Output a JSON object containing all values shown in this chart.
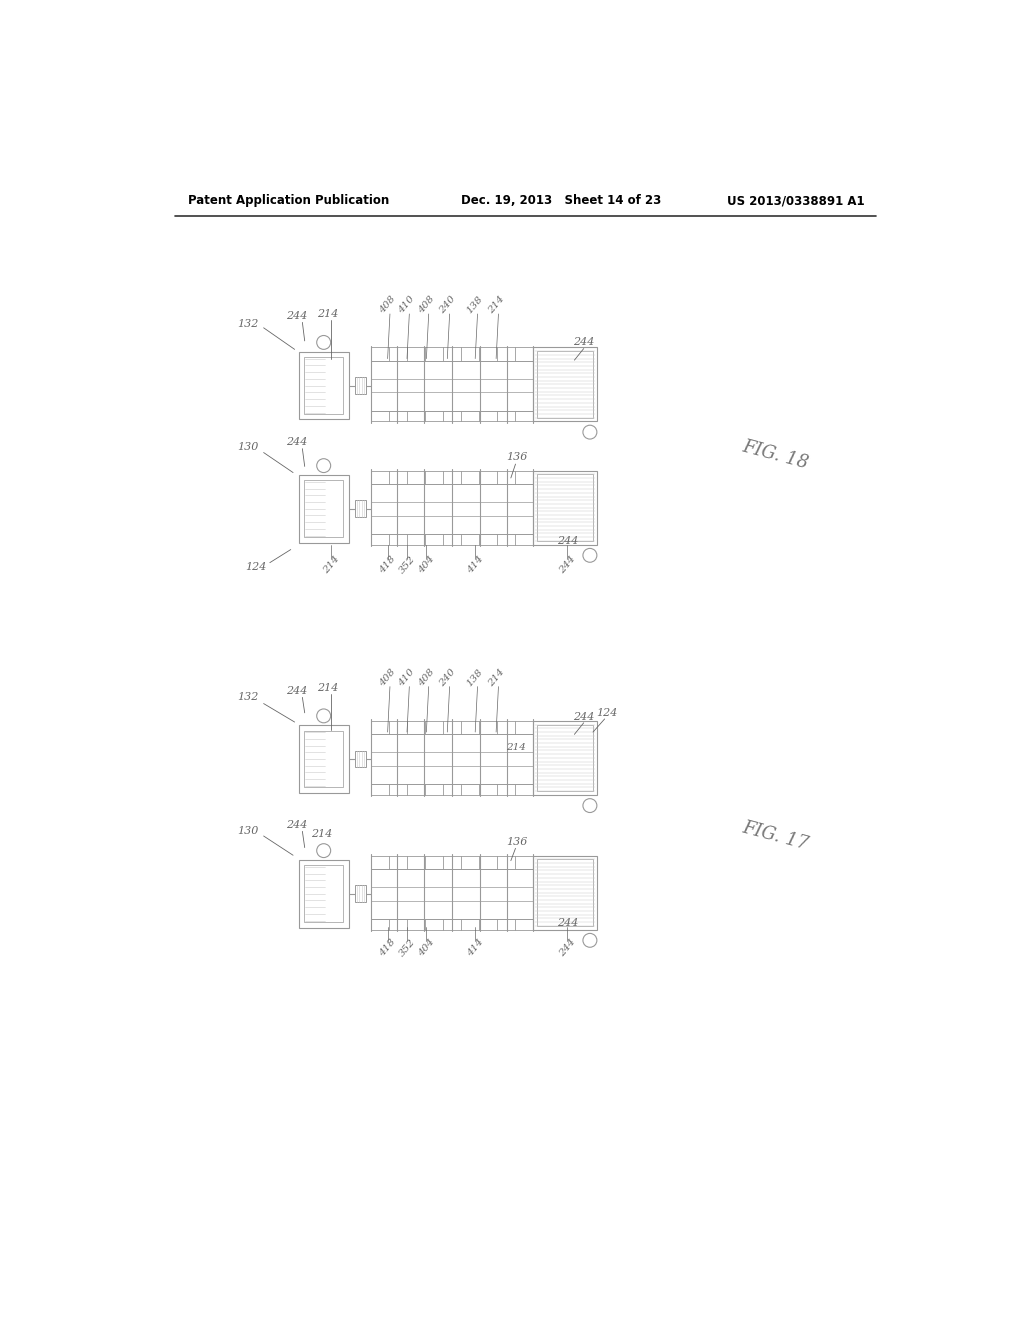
{
  "bg_color": "#ffffff",
  "line_color": "#aaaaaa",
  "text_color": "#666666",
  "header_text_color": "#000000",
  "header": {
    "left": "Patent Application Publication",
    "center": "Dec. 19, 2013   Sheet 14 of 23",
    "right": "US 2013/0338891 A1"
  },
  "fig18_label": "FIG. 18",
  "fig17_label": "FIG. 17",
  "lc": "#999999",
  "lw": 0.7
}
